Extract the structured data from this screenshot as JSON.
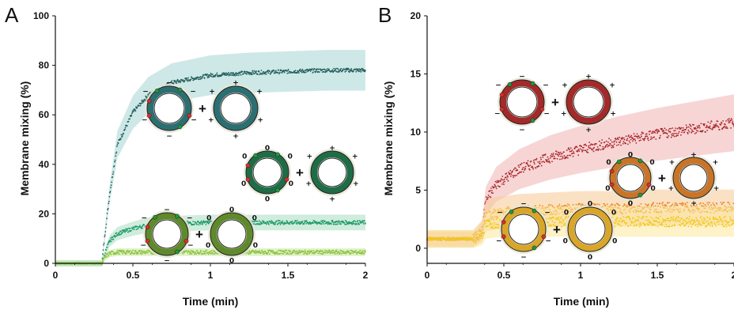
{
  "chart_data": [
    {
      "panel": "A",
      "type": "line",
      "xlabel": "Time (min)",
      "ylabel": "Membrane mixing (%)",
      "xlim": [
        0,
        2
      ],
      "ylim": [
        0,
        100
      ],
      "x_ticks": [
        "0",
        "0.5",
        "1",
        "1.5",
        "2"
      ],
      "y_ticks": [
        "0",
        "20",
        "40",
        "60",
        "80",
        "100"
      ],
      "grid": false,
      "x": [
        0,
        0.3,
        0.32,
        0.35,
        0.4,
        0.5,
        0.6,
        0.75,
        1.0,
        1.25,
        1.5,
        1.75,
        2.0
      ],
      "series": [
        {
          "color": "#245f5c",
          "band": "#a6d5d3",
          "values": [
            0,
            0,
            12,
            28,
            48,
            61,
            68,
            73,
            76,
            77,
            77.5,
            78,
            78
          ]
        },
        {
          "color": "#1c9a68",
          "band": "#a9dcc1",
          "values": [
            0,
            0,
            4,
            9,
            12,
            14,
            15.5,
            16,
            16.5,
            16.5,
            16.5,
            16.5,
            16.5
          ]
        },
        {
          "color": "#8cc43c",
          "band": "#c9e6a2",
          "values": [
            0,
            0,
            2.5,
            4,
            4.5,
            4.5,
            4.5,
            4.5,
            4.5,
            4.5,
            4.5,
            4.5,
            4.5
          ]
        }
      ],
      "schematics": [
        {
          "fill": "#2c6f73",
          "outer_charge": "−",
          "partner_charge": "+"
        },
        {
          "fill": "#1f6d46",
          "outer_charge": "0",
          "partner_charge": "+"
        },
        {
          "fill": "#5f8a2c",
          "outer_charge": "−",
          "partner_charge": "0"
        }
      ],
      "operator": "+"
    },
    {
      "panel": "B",
      "type": "line",
      "xlabel": "Time (min)",
      "ylabel": "Membrane mixing (%)",
      "xlim": [
        0,
        2
      ],
      "ylim": [
        -1.3,
        20
      ],
      "x_ticks": [
        "0",
        "0.5",
        "1",
        "1.5",
        "2"
      ],
      "y_ticks": [
        "0",
        "5",
        "10",
        "15",
        "20"
      ],
      "grid": false,
      "x": [
        0,
        0.3,
        0.36,
        0.38,
        0.45,
        0.6,
        0.8,
        1.0,
        1.25,
        1.5,
        1.75,
        2.0
      ],
      "series": [
        {
          "color": "#a9262b",
          "band": "#f0b3b3",
          "values": [
            0.8,
            0.8,
            1.5,
            4.0,
            5.5,
            6.8,
            7.8,
            8.5,
            9.2,
            9.8,
            10.3,
            10.8
          ]
        },
        {
          "color": "#e8871e",
          "band": "#f7c894",
          "values": [
            0.8,
            0.8,
            1.5,
            2.8,
            3.0,
            3.2,
            3.3,
            3.4,
            3.4,
            3.5,
            3.5,
            3.5
          ]
        },
        {
          "color": "#f2c811",
          "band": "#fbe79a",
          "values": [
            0.8,
            0.8,
            1.2,
            2.0,
            2.2,
            2.3,
            2.3,
            2.3,
            2.3,
            2.3,
            2.3,
            2.3
          ]
        }
      ],
      "schematics": [
        {
          "fill": "#a32a2a",
          "outer_charge": "−",
          "partner_charge": "+"
        },
        {
          "fill": "#c8752a",
          "outer_charge": "0",
          "partner_charge": "+"
        },
        {
          "fill": "#d9a62a",
          "outer_charge": "−",
          "partner_charge": "0"
        }
      ],
      "operator": "+"
    }
  ]
}
